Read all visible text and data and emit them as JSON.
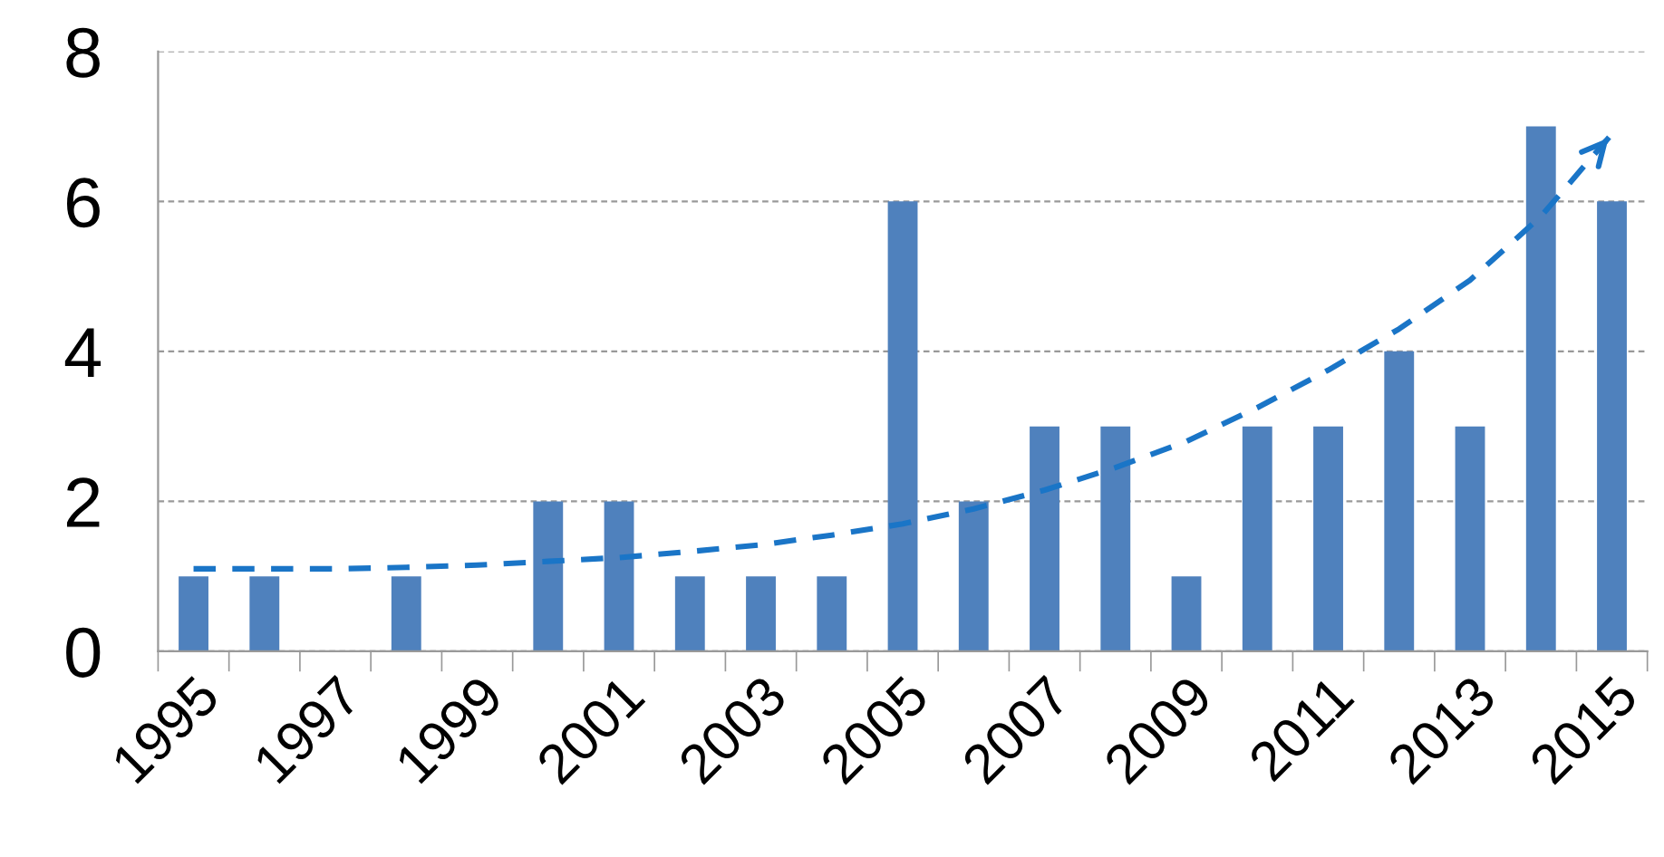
{
  "chart_data": {
    "type": "bar",
    "categories": [
      "1995",
      null,
      "1997",
      null,
      "1999",
      null,
      "2001",
      null,
      "2003",
      null,
      "2005",
      null,
      "2007",
      null,
      "2009",
      null,
      "2011",
      null,
      "2013",
      null,
      "2015"
    ],
    "series": [
      {
        "color": "#4f81bd",
        "values": [
          1,
          1,
          0,
          1,
          0,
          2,
          2,
          1,
          1,
          1,
          6,
          2,
          3,
          3,
          1,
          3,
          3,
          4,
          3,
          7,
          6
        ]
      },
      {
        "type": "line",
        "color": "#1a75c7",
        "line_style": "dashed",
        "values": [
          1.1,
          1.1,
          1.1,
          1.12,
          1.15,
          1.2,
          1.25,
          1.33,
          1.42,
          1.55,
          1.7,
          1.9,
          2.15,
          2.45,
          2.8,
          3.25,
          3.75,
          4.3,
          4.95,
          5.8,
          6.9
        ]
      }
    ],
    "ylim": [
      0,
      8
    ],
    "yticks": [
      0,
      2,
      4,
      6,
      8
    ],
    "grid": "y"
  }
}
